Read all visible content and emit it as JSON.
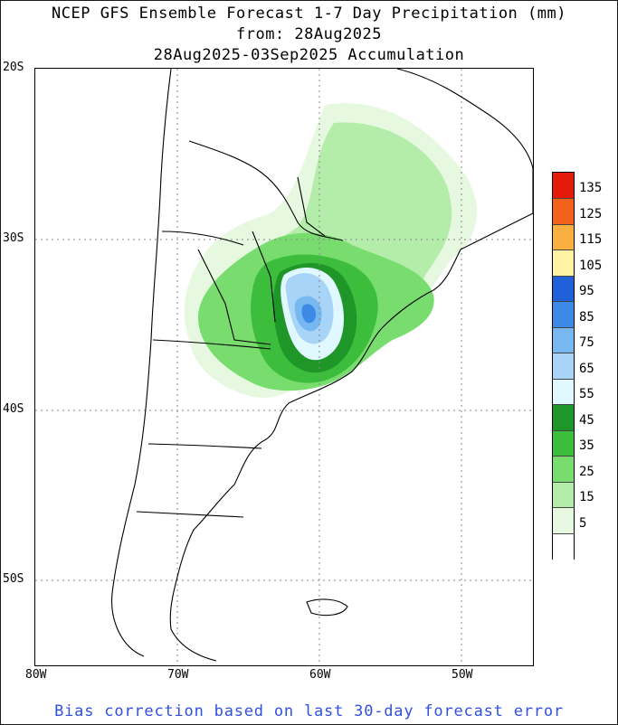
{
  "title": {
    "line1": "NCEP GFS Ensemble Forecast 1-7 Day Precipitation (mm)",
    "line2": "from: 28Aug2025",
    "line3": "28Aug2025-03Sep2025 Accumulation"
  },
  "axes": {
    "lat_labels": [
      "20S",
      "30S",
      "40S",
      "50S"
    ],
    "lon_labels": [
      "80W",
      "70W",
      "60W",
      "50W"
    ]
  },
  "legend": {
    "labels": [
      "135",
      "125",
      "115",
      "105",
      "95",
      "85",
      "75",
      "65",
      "55",
      "45",
      "35",
      "25",
      "15",
      "5"
    ],
    "colors": [
      "#e41a0a",
      "#f2621a",
      "#f9b040",
      "#fff2a2",
      "#2060d8",
      "#3c8ae6",
      "#78b8f0",
      "#a8d4f8",
      "#e0f8ff",
      "#1e9628",
      "#3cbe3c",
      "#78dc6e",
      "#b4ecaa",
      "#e6f8e0",
      "#ffffff"
    ]
  },
  "footer": "Bias correction based on last 30-day forecast error",
  "colors": {
    "footer_text": "#3050e0",
    "coastline": "#000000",
    "grid": "#888888"
  }
}
